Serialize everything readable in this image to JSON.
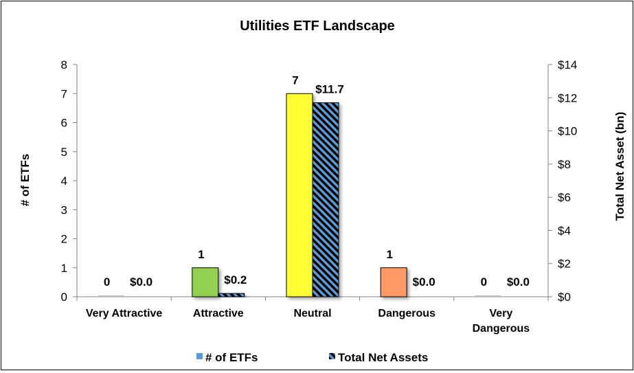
{
  "chart_data": {
    "type": "bar",
    "title": "Utilities ETF Landscape",
    "categories": [
      [
        "Very Attractive"
      ],
      [
        "Attractive"
      ],
      [
        "Neutral"
      ],
      [
        "Dangerous"
      ],
      [
        "Very",
        "Dangerous"
      ]
    ],
    "ylabel": "# of ETFs",
    "y2label": "Total Net Asset (bn)",
    "ylim": [
      0,
      8
    ],
    "y2lim": [
      0,
      14
    ],
    "yticks": [
      "0",
      "1",
      "2",
      "3",
      "4",
      "5",
      "6",
      "7",
      "8"
    ],
    "y2ticks": [
      "$0",
      "$2",
      "$4",
      "$6",
      "$8",
      "$10",
      "$12",
      "$14"
    ],
    "legend": "bottom",
    "series": [
      {
        "name": "# of ETFs",
        "axis": "left",
        "values": [
          0,
          1,
          7,
          1,
          0
        ],
        "labels": [
          "0",
          "1",
          "7",
          "1",
          "0"
        ],
        "colors": [
          "#bfbfbf",
          "#92d050",
          "#ffff33",
          "#ff9966",
          "#bfbfbf"
        ],
        "legend_color": "#5b9bd5"
      },
      {
        "name": "Total Net Assets",
        "axis": "right",
        "values": [
          0.0,
          0.2,
          11.7,
          0.0,
          0.0
        ],
        "labels": [
          "$0.0",
          "$0.2",
          "$11.7",
          "$0.0",
          "$0.0"
        ],
        "fill": "hatch",
        "base_color": "#000000",
        "hatch_color": "#5b9bd5"
      }
    ]
  }
}
